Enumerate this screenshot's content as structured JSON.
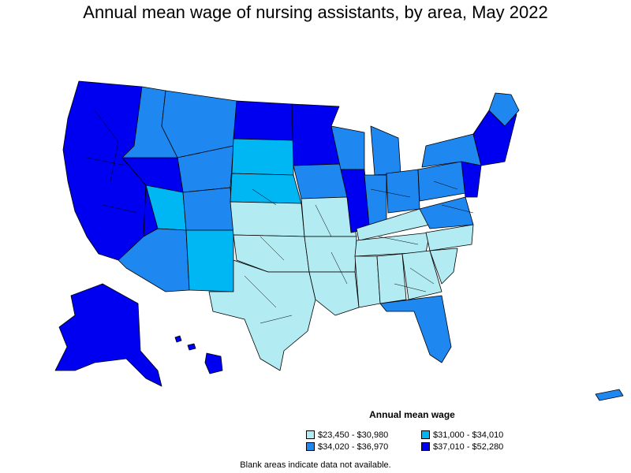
{
  "title": "Annual mean wage of nursing assistants, by area, May 2022",
  "legend": {
    "title": "Annual mean wage",
    "items": [
      {
        "label": "$23,450 - $30,980",
        "color": "#b2ebf2"
      },
      {
        "label": "$31,000 - $34,010",
        "color": "#00b7f4"
      },
      {
        "label": "$34,020 - $36,970",
        "color": "#1e88f0"
      },
      {
        "label": "$37,010 - $52,280",
        "color": "#0000f0"
      }
    ]
  },
  "footnote": "Blank areas indicate data not available.",
  "map_colors": {
    "low": "#b2ebf2",
    "mid_low": "#00b7f4",
    "mid_high": "#1e88f0",
    "high": "#0000f0",
    "outline": "#000000"
  }
}
